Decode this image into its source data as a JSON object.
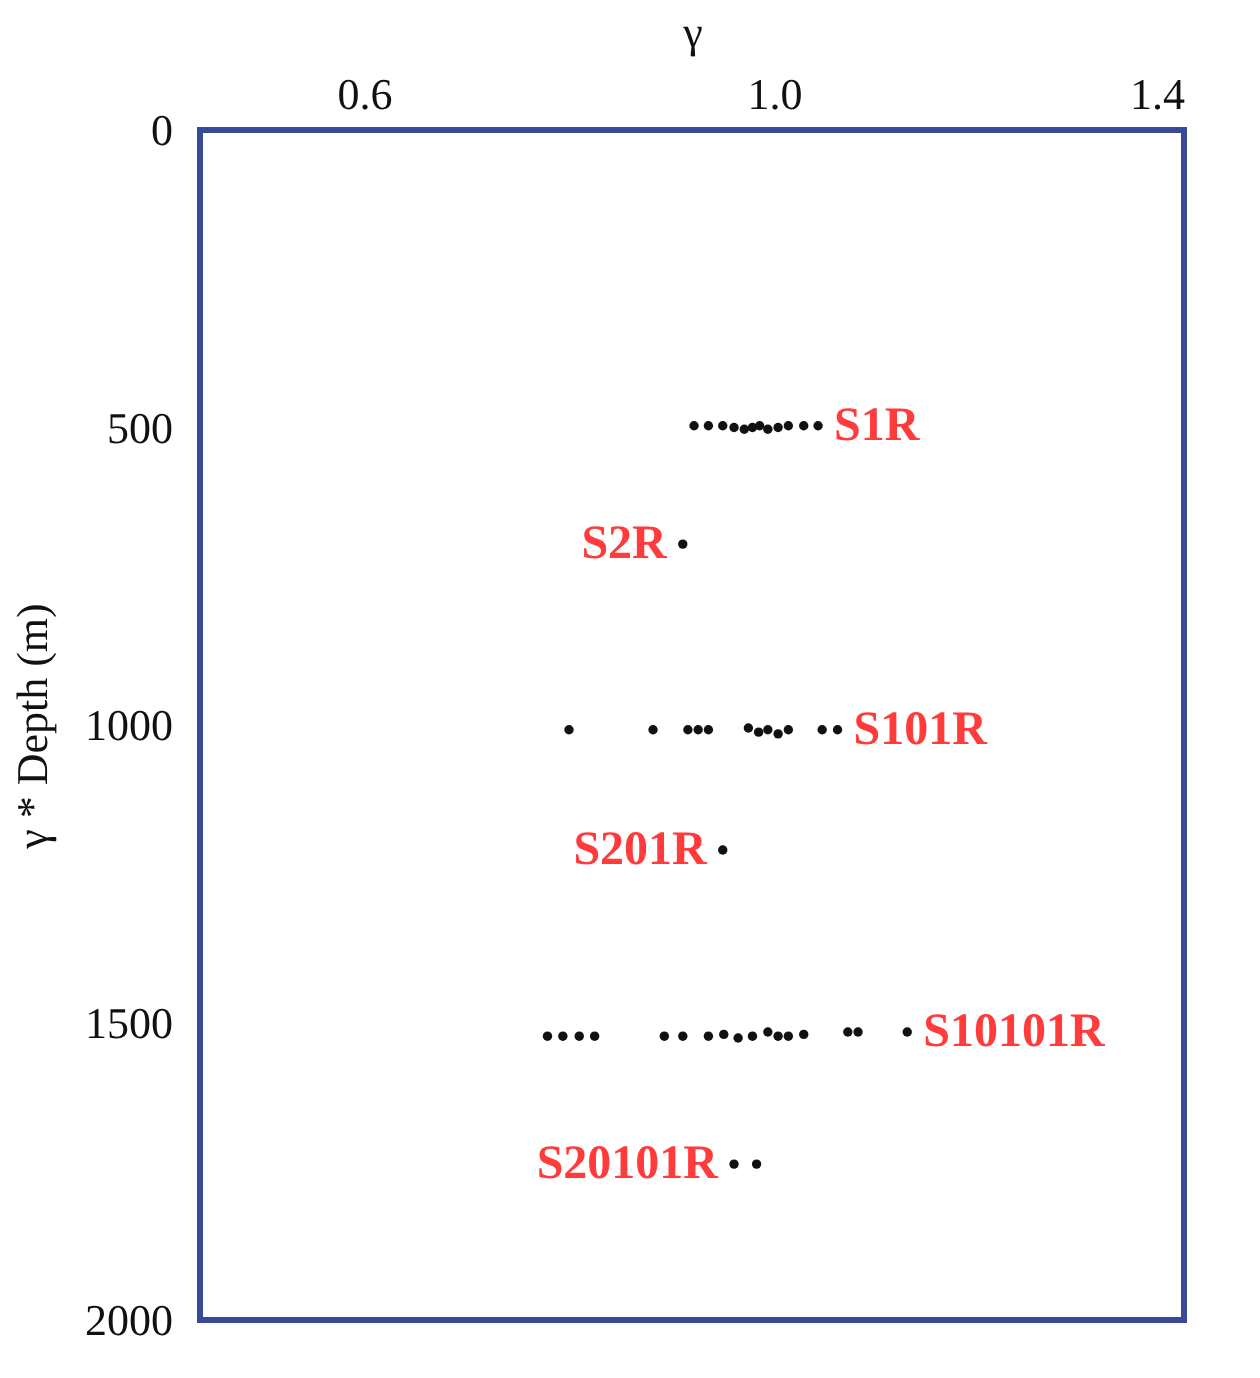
{
  "chart_data": {
    "type": "scatter",
    "xlabel": "γ",
    "ylabel": "γ * Depth (m)",
    "xlim": [
      0.44,
      1.4
    ],
    "xticks": [
      {
        "value": 0.6,
        "label": "0.6"
      },
      {
        "value": 1.0,
        "label": "1.0"
      },
      {
        "value": 1.4,
        "label": "1.4"
      }
    ],
    "ylim": [
      2000,
      0
    ],
    "yticks": [
      0,
      500,
      1000,
      1500,
      2000
    ],
    "grid": false,
    "marker": "circle",
    "series": [
      {
        "color": "#111111",
        "x": [
          0.922,
          0.936,
          0.95,
          0.961,
          0.971,
          0.979,
          0.986,
          0.994,
          1.004,
          1.014,
          1.029,
          1.043,
          0.911,
          0.8,
          0.882,
          0.916,
          0.926,
          0.936,
          0.975,
          0.985,
          0.994,
          1.004,
          1.014,
          1.047,
          1.062,
          0.95,
          0.779,
          0.794,
          0.81,
          0.825,
          0.893,
          0.911,
          0.936,
          0.951,
          0.965,
          0.979,
          0.994,
          1.004,
          1.014,
          1.029,
          1.072,
          1.082,
          1.13,
          0.961,
          0.983
        ],
        "values": [
          497,
          497,
          497,
          500,
          503,
          500,
          497,
          503,
          500,
          497,
          497,
          497,
          696,
          1008,
          1008,
          1008,
          1008,
          1008,
          1005,
          1012,
          1008,
          1015,
          1008,
          1008,
          1008,
          1210,
          1523,
          1523,
          1523,
          1523,
          1523,
          1523,
          1523,
          1520,
          1526,
          1523,
          1516,
          1523,
          1523,
          1520,
          1516,
          1516,
          1516,
          1738,
          1738
        ]
      }
    ],
    "annotations": [
      {
        "text": "S1R",
        "x": 1.043,
        "y": 497
      },
      {
        "text": "S2R",
        "x": 0.911,
        "y": 696
      },
      {
        "text": "S101R",
        "x": 1.062,
        "y": 1008
      },
      {
        "text": "S201R",
        "x": 0.95,
        "y": 1210
      },
      {
        "text": "S10101R",
        "x": 1.13,
        "y": 1516
      },
      {
        "text": "S20101R",
        "x": 0.961,
        "y": 1738
      }
    ]
  }
}
